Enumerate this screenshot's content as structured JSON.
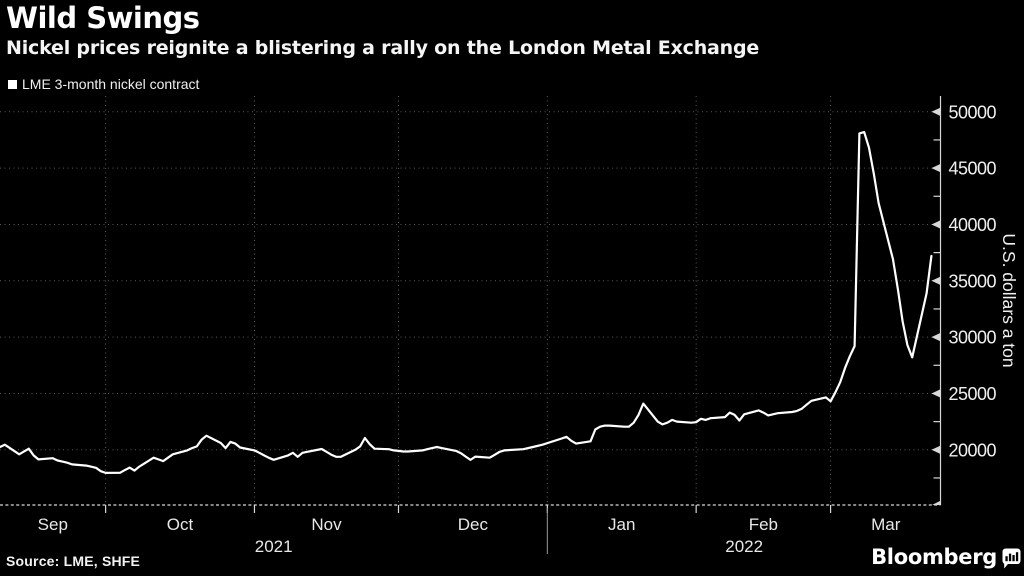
{
  "header": {
    "title": "Wild Swings",
    "subtitle": "Nickel prices reignite a blistering a rally on the London Metal Exchange"
  },
  "legend": {
    "items": [
      {
        "label": "LME 3-month nickel contract",
        "marker_color": "#ffffff"
      }
    ]
  },
  "footer": {
    "source": "Source: LME, SHFE",
    "brand": "Bloomberg"
  },
  "colors": {
    "background": "#000000",
    "line": "#ffffff",
    "grid": "#5a5a5a",
    "axis": "#d8d8d8",
    "tick_label": "#f0f0f0",
    "month_label": "#e8e8e8",
    "year_separator": "#9a9a9a"
  },
  "chart_data": {
    "type": "line",
    "title": "Wild Swings",
    "subtitle": "Nickel prices reignite a blistering a rally on the London Metal Exchange",
    "ylabel": "U.S. dollars a ton",
    "xlabel": "",
    "grid": "dotted",
    "legend_position": "top-left",
    "ylim": [
      15100,
      51400
    ],
    "y_ticks": [
      20000,
      25000,
      30000,
      35000,
      40000,
      45000,
      50000
    ],
    "y_minor_step": 2500,
    "x_range": [
      "2021-09-09",
      "2022-03-24"
    ],
    "months": [
      {
        "label": "Sep",
        "start": "2021-09-01"
      },
      {
        "label": "Oct",
        "start": "2021-10-01"
      },
      {
        "label": "Nov",
        "start": "2021-11-01"
      },
      {
        "label": "Dec",
        "start": "2021-12-01"
      },
      {
        "label": "Jan",
        "start": "2022-01-01"
      },
      {
        "label": "Feb",
        "start": "2022-02-01"
      },
      {
        "label": "Mar",
        "start": "2022-03-01"
      }
    ],
    "years": [
      {
        "label": "2021",
        "start": "2021-09-09",
        "end": "2022-01-01"
      },
      {
        "label": "2022",
        "start": "2022-01-01",
        "end": "2022-03-24"
      }
    ],
    "series": [
      {
        "name": "LME 3-month nickel contract",
        "color": "#ffffff",
        "points": [
          [
            "2021-09-09",
            20250
          ],
          [
            "2021-09-10",
            20450
          ],
          [
            "2021-09-13",
            19600
          ],
          [
            "2021-09-15",
            20100
          ],
          [
            "2021-09-16",
            19500
          ],
          [
            "2021-09-17",
            19150
          ],
          [
            "2021-09-20",
            19250
          ],
          [
            "2021-09-21",
            19050
          ],
          [
            "2021-09-22",
            18950
          ],
          [
            "2021-09-23",
            18850
          ],
          [
            "2021-09-24",
            18700
          ],
          [
            "2021-09-27",
            18600
          ],
          [
            "2021-09-28",
            18500
          ],
          [
            "2021-09-29",
            18400
          ],
          [
            "2021-09-30",
            18100
          ],
          [
            "2021-10-01",
            17950
          ],
          [
            "2021-10-04",
            17960
          ],
          [
            "2021-10-05",
            18200
          ],
          [
            "2021-10-06",
            18420
          ],
          [
            "2021-10-07",
            18150
          ],
          [
            "2021-10-08",
            18500
          ],
          [
            "2021-10-11",
            19300
          ],
          [
            "2021-10-12",
            19150
          ],
          [
            "2021-10-13",
            19000
          ],
          [
            "2021-10-14",
            19300
          ],
          [
            "2021-10-15",
            19600
          ],
          [
            "2021-10-18",
            19950
          ],
          [
            "2021-10-19",
            20150
          ],
          [
            "2021-10-20",
            20300
          ],
          [
            "2021-10-21",
            20900
          ],
          [
            "2021-10-22",
            21250
          ],
          [
            "2021-10-25",
            20600
          ],
          [
            "2021-10-26",
            20150
          ],
          [
            "2021-10-27",
            20700
          ],
          [
            "2021-10-28",
            20550
          ],
          [
            "2021-10-29",
            20200
          ],
          [
            "2021-11-01",
            19950
          ],
          [
            "2021-11-02",
            19730
          ],
          [
            "2021-11-03",
            19500
          ],
          [
            "2021-11-04",
            19290
          ],
          [
            "2021-11-05",
            19110
          ],
          [
            "2021-11-08",
            19500
          ],
          [
            "2021-11-09",
            19730
          ],
          [
            "2021-11-10",
            19380
          ],
          [
            "2021-11-11",
            19730
          ],
          [
            "2021-11-12",
            19820
          ],
          [
            "2021-11-15",
            20070
          ],
          [
            "2021-11-16",
            19820
          ],
          [
            "2021-11-17",
            19560
          ],
          [
            "2021-11-18",
            19380
          ],
          [
            "2021-11-19",
            19380
          ],
          [
            "2021-11-22",
            20000
          ],
          [
            "2021-11-23",
            20300
          ],
          [
            "2021-11-24",
            21050
          ],
          [
            "2021-11-25",
            20500
          ],
          [
            "2021-11-26",
            20100
          ],
          [
            "2021-11-29",
            20050
          ],
          [
            "2021-11-30",
            19950
          ],
          [
            "2021-12-01",
            19900
          ],
          [
            "2021-12-02",
            19850
          ],
          [
            "2021-12-03",
            19850
          ],
          [
            "2021-12-06",
            19950
          ],
          [
            "2021-12-07",
            20050
          ],
          [
            "2021-12-08",
            20150
          ],
          [
            "2021-12-09",
            20250
          ],
          [
            "2021-12-10",
            20150
          ],
          [
            "2021-12-13",
            19900
          ],
          [
            "2021-12-14",
            19700
          ],
          [
            "2021-12-15",
            19400
          ],
          [
            "2021-12-16",
            19100
          ],
          [
            "2021-12-17",
            19400
          ],
          [
            "2021-12-20",
            19300
          ],
          [
            "2021-12-21",
            19550
          ],
          [
            "2021-12-22",
            19800
          ],
          [
            "2021-12-23",
            19950
          ],
          [
            "2021-12-27",
            20050
          ],
          [
            "2021-12-29",
            20250
          ],
          [
            "2021-12-31",
            20450
          ],
          [
            "2022-01-04",
            21000
          ],
          [
            "2022-01-05",
            21150
          ],
          [
            "2022-01-06",
            20800
          ],
          [
            "2022-01-07",
            20550
          ],
          [
            "2022-01-10",
            20750
          ],
          [
            "2022-01-11",
            21800
          ],
          [
            "2022-01-12",
            22050
          ],
          [
            "2022-01-13",
            22150
          ],
          [
            "2022-01-14",
            22150
          ],
          [
            "2022-01-17",
            22050
          ],
          [
            "2022-01-18",
            22050
          ],
          [
            "2022-01-19",
            22400
          ],
          [
            "2022-01-20",
            23100
          ],
          [
            "2022-01-21",
            24100
          ],
          [
            "2022-01-24",
            22500
          ],
          [
            "2022-01-25",
            22250
          ],
          [
            "2022-01-26",
            22400
          ],
          [
            "2022-01-27",
            22650
          ],
          [
            "2022-01-28",
            22500
          ],
          [
            "2022-01-31",
            22400
          ],
          [
            "2022-02-01",
            22450
          ],
          [
            "2022-02-02",
            22750
          ],
          [
            "2022-02-03",
            22650
          ],
          [
            "2022-02-04",
            22800
          ],
          [
            "2022-02-07",
            22900
          ],
          [
            "2022-02-08",
            23300
          ],
          [
            "2022-02-09",
            23100
          ],
          [
            "2022-02-10",
            22600
          ],
          [
            "2022-02-11",
            23150
          ],
          [
            "2022-02-14",
            23500
          ],
          [
            "2022-02-15",
            23300
          ],
          [
            "2022-02-16",
            23050
          ],
          [
            "2022-02-17",
            23150
          ],
          [
            "2022-02-18",
            23250
          ],
          [
            "2022-02-21",
            23350
          ],
          [
            "2022-02-22",
            23450
          ],
          [
            "2022-02-23",
            23650
          ],
          [
            "2022-02-24",
            24000
          ],
          [
            "2022-02-25",
            24350
          ],
          [
            "2022-02-28",
            24650
          ],
          [
            "2022-03-01",
            24300
          ],
          [
            "2022-03-02",
            25100
          ],
          [
            "2022-03-03",
            26000
          ],
          [
            "2022-03-04",
            27250
          ],
          [
            "2022-03-05",
            28300
          ],
          [
            "2022-03-06",
            29200
          ],
          [
            "2022-03-07",
            48080
          ],
          [
            "2022-03-08",
            48200
          ],
          [
            "2022-03-09",
            46800
          ],
          [
            "2022-03-10",
            44500
          ],
          [
            "2022-03-11",
            41900
          ],
          [
            "2022-03-14",
            36900
          ],
          [
            "2022-03-15",
            34300
          ],
          [
            "2022-03-16",
            31400
          ],
          [
            "2022-03-17",
            29300
          ],
          [
            "2022-03-18",
            28200
          ],
          [
            "2022-03-21",
            33900
          ],
          [
            "2022-03-22",
            37200
          ]
        ]
      }
    ]
  }
}
